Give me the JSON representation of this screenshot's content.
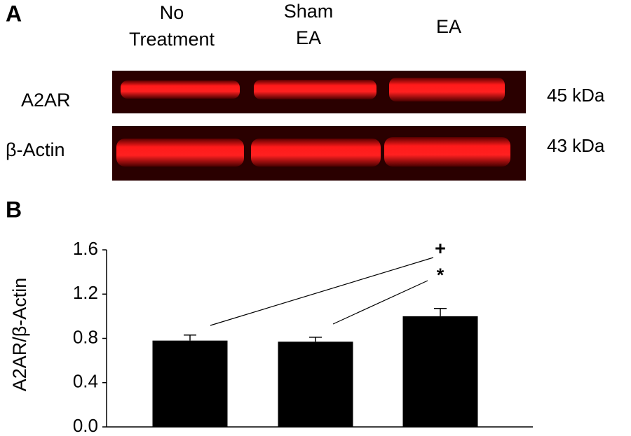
{
  "panels": {
    "a": "A",
    "b": "B"
  },
  "blot": {
    "headers": [
      [
        "No",
        "Treatment"
      ],
      [
        "Sham",
        "EA"
      ],
      [
        "EA"
      ]
    ],
    "rows": [
      {
        "label": "A2AR",
        "size": "45 kDa"
      },
      {
        "label": "β-Actin",
        "size": "43 kDa"
      }
    ]
  },
  "chart_data": {
    "type": "bar",
    "ylabel": "A2AR/β-Actin",
    "categories": [
      null,
      null,
      null
    ],
    "values": [
      0.78,
      0.77,
      1.0
    ],
    "errors": [
      0.05,
      0.04,
      0.07
    ],
    "color": "#000000",
    "ylim": [
      0,
      1.6
    ],
    "yticks": [
      {
        "value": 0,
        "label": "0.0"
      },
      0.4,
      0.8,
      1.2,
      1.6
    ],
    "annotations": [
      "+",
      "*"
    ]
  }
}
